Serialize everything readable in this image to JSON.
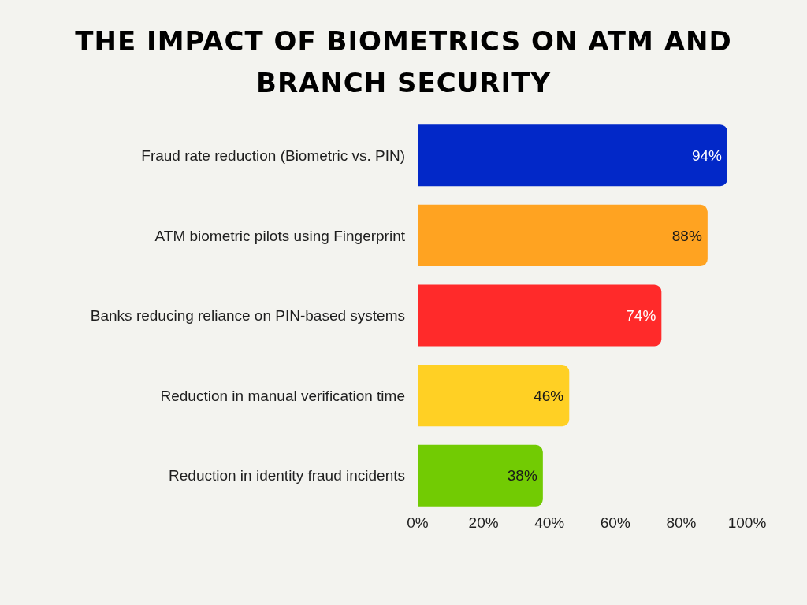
{
  "chart_data": {
    "type": "bar",
    "orientation": "horizontal",
    "title": "THE IMPACT OF BIOMETRICS ON ATM AND BRANCH SECURITY",
    "categories": [
      "Fraud rate reduction (Biometric vs. PIN)",
      "ATM biometric pilots using Fingerprint",
      "Banks reducing reliance on PIN-based systems",
      "Reduction in manual verification time",
      "Reduction in identity fraud incidents"
    ],
    "values": [
      94,
      88,
      74,
      46,
      38
    ],
    "colors": [
      "#0228c8",
      "#ffa321",
      "#ff2a2a",
      "#ffd024",
      "#72cb03"
    ],
    "value_labels": [
      "94%",
      "88%",
      "74%",
      "46%",
      "38%"
    ],
    "xlim": [
      0,
      100
    ],
    "xticks": [
      {
        "value": 0,
        "label": "0%"
      },
      {
        "value": 20,
        "label": "20%"
      },
      {
        "value": 40,
        "label": "40%"
      },
      {
        "value": 60,
        "label": "60%"
      },
      {
        "value": 80,
        "label": "80%"
      },
      {
        "value": 100,
        "label": "100%"
      }
    ]
  }
}
